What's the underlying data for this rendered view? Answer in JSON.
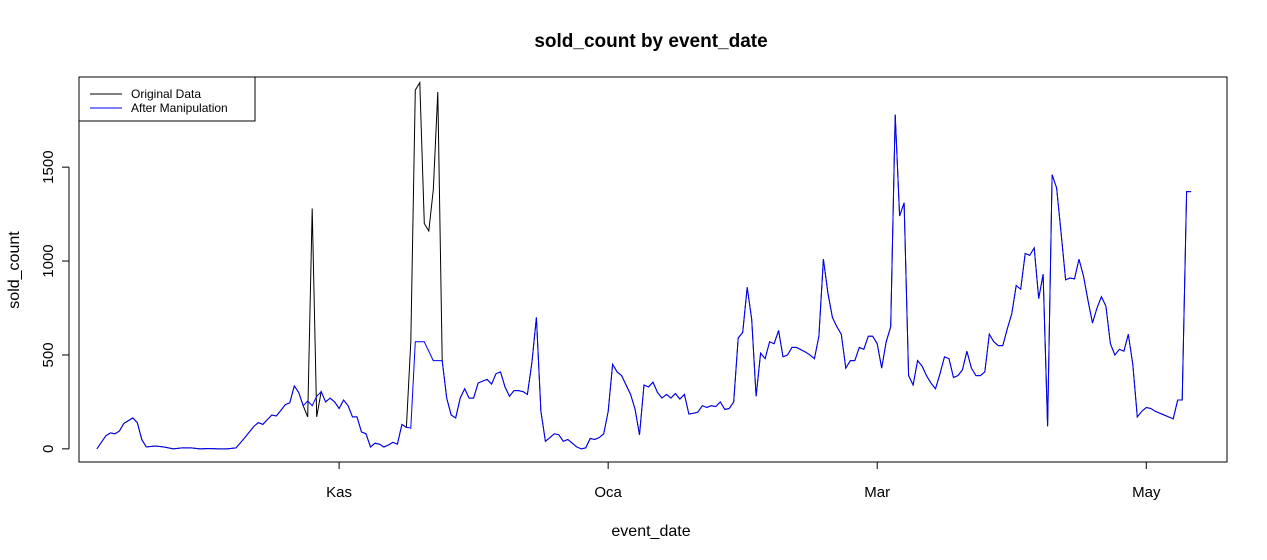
{
  "chart_data": {
    "type": "line",
    "title": "sold_count by event_date",
    "xlabel": "event_date",
    "ylabel": "sold_count",
    "x_ticks": [
      "Kas",
      "Oca",
      "Mar",
      "May"
    ],
    "y_ticks": [
      "0",
      "500",
      "1000",
      "1500"
    ],
    "legend": {
      "position": "top-left",
      "entries": [
        "Original Data",
        "After Manipulation"
      ]
    },
    "colors": {
      "original": "#000000",
      "manipulated": "#0000ff"
    },
    "grid": false,
    "series": [
      {
        "name": "Original Data",
        "color": "#000000",
        "spikes": [
          {
            "x": -7,
            "y": 170
          },
          {
            "x": -6,
            "y": 1280
          },
          {
            "x": -5,
            "y": 170
          },
          {
            "x": 16,
            "y": 570
          },
          {
            "x": 17,
            "y": 1910
          },
          {
            "x": 18,
            "y": 1950
          },
          {
            "x": 19,
            "y": 1200
          },
          {
            "x": 20,
            "y": 1160
          },
          {
            "x": 21,
            "y": 1380
          },
          {
            "x": 22,
            "y": 1900
          },
          {
            "x": 23,
            "y": 470
          }
        ]
      },
      {
        "name": "After Manipulation",
        "color": "#0000ff",
        "points": [
          [
            -54,
            0
          ],
          [
            -52,
            70
          ],
          [
            -51,
            85
          ],
          [
            -50,
            80
          ],
          [
            -49,
            95
          ],
          [
            -48,
            135
          ],
          [
            -46,
            165
          ],
          [
            -45,
            140
          ],
          [
            -44,
            50
          ],
          [
            -43,
            10
          ],
          [
            -41,
            15
          ],
          [
            -39,
            10
          ],
          [
            -37,
            0
          ],
          [
            -35,
            5
          ],
          [
            -33,
            5
          ],
          [
            -31,
            0
          ],
          [
            -29,
            2
          ],
          [
            -27,
            0
          ],
          [
            -25,
            0
          ],
          [
            -23,
            5
          ],
          [
            -21,
            60
          ],
          [
            -19,
            120
          ],
          [
            -18,
            140
          ],
          [
            -17,
            130
          ],
          [
            -16,
            155
          ],
          [
            -15,
            180
          ],
          [
            -14,
            175
          ],
          [
            -13,
            205
          ],
          [
            -12,
            235
          ],
          [
            -11,
            245
          ],
          [
            -10,
            335
          ],
          [
            -9,
            300
          ],
          [
            -8,
            230
          ],
          [
            -7,
            255
          ],
          [
            -6,
            230
          ],
          [
            -5,
            280
          ],
          [
            -4,
            305
          ],
          [
            -3,
            250
          ],
          [
            -2,
            270
          ],
          [
            -1,
            250
          ],
          [
            0,
            215
          ],
          [
            1,
            260
          ],
          [
            2,
            230
          ],
          [
            3,
            170
          ],
          [
            4,
            170
          ],
          [
            5,
            90
          ],
          [
            6,
            80
          ],
          [
            7,
            10
          ],
          [
            8,
            30
          ],
          [
            9,
            25
          ],
          [
            10,
            10
          ],
          [
            11,
            20
          ],
          [
            12,
            35
          ],
          [
            13,
            25
          ],
          [
            14,
            130
          ],
          [
            15,
            115
          ],
          [
            16,
            110
          ],
          [
            17,
            570
          ],
          [
            19,
            570
          ],
          [
            21,
            470
          ],
          [
            23,
            470
          ],
          [
            24,
            270
          ],
          [
            25,
            180
          ],
          [
            26,
            165
          ],
          [
            27,
            270
          ],
          [
            28,
            320
          ],
          [
            29,
            270
          ],
          [
            30,
            270
          ],
          [
            31,
            350
          ],
          [
            32,
            360
          ],
          [
            33,
            370
          ],
          [
            34,
            345
          ],
          [
            35,
            400
          ],
          [
            36,
            410
          ],
          [
            37,
            330
          ],
          [
            38,
            280
          ],
          [
            39,
            310
          ],
          [
            40,
            310
          ],
          [
            41,
            305
          ],
          [
            42,
            290
          ],
          [
            43,
            460
          ],
          [
            44,
            700
          ],
          [
            45,
            200
          ],
          [
            46,
            40
          ],
          [
            47,
            60
          ],
          [
            48,
            80
          ],
          [
            49,
            75
          ],
          [
            50,
            40
          ],
          [
            51,
            50
          ],
          [
            52,
            30
          ],
          [
            53,
            10
          ],
          [
            54,
            0
          ],
          [
            55,
            5
          ],
          [
            56,
            55
          ],
          [
            57,
            50
          ],
          [
            58,
            60
          ],
          [
            59,
            80
          ],
          [
            60,
            200
          ],
          [
            61,
            450
          ],
          [
            62,
            410
          ],
          [
            63,
            390
          ],
          [
            64,
            340
          ],
          [
            65,
            290
          ],
          [
            66,
            210
          ],
          [
            67,
            75
          ],
          [
            68,
            340
          ],
          [
            69,
            330
          ],
          [
            70,
            355
          ],
          [
            71,
            300
          ],
          [
            72,
            270
          ],
          [
            73,
            290
          ],
          [
            74,
            270
          ],
          [
            75,
            295
          ],
          [
            76,
            265
          ],
          [
            77,
            290
          ],
          [
            78,
            185
          ],
          [
            79,
            190
          ],
          [
            80,
            195
          ],
          [
            81,
            230
          ],
          [
            82,
            220
          ],
          [
            83,
            230
          ],
          [
            84,
            225
          ],
          [
            85,
            250
          ],
          [
            86,
            210
          ],
          [
            87,
            215
          ],
          [
            88,
            250
          ],
          [
            89,
            590
          ],
          [
            90,
            620
          ],
          [
            91,
            860
          ],
          [
            92,
            690
          ],
          [
            93,
            280
          ],
          [
            94,
            510
          ],
          [
            95,
            480
          ],
          [
            96,
            570
          ],
          [
            97,
            560
          ],
          [
            98,
            630
          ],
          [
            99,
            490
          ],
          [
            100,
            500
          ],
          [
            101,
            540
          ],
          [
            102,
            540
          ],
          [
            104,
            515
          ],
          [
            105,
            500
          ],
          [
            106,
            480
          ],
          [
            107,
            600
          ],
          [
            108,
            1010
          ],
          [
            109,
            830
          ],
          [
            110,
            700
          ],
          [
            111,
            650
          ],
          [
            112,
            610
          ],
          [
            113,
            430
          ],
          [
            114,
            470
          ],
          [
            115,
            470
          ],
          [
            116,
            540
          ],
          [
            117,
            530
          ],
          [
            118,
            600
          ],
          [
            119,
            600
          ],
          [
            120,
            560
          ],
          [
            121,
            430
          ],
          [
            122,
            570
          ],
          [
            123,
            650
          ],
          [
            124,
            1780
          ],
          [
            125,
            1240
          ],
          [
            126,
            1310
          ],
          [
            127,
            390
          ],
          [
            128,
            340
          ],
          [
            129,
            470
          ],
          [
            130,
            440
          ],
          [
            131,
            390
          ],
          [
            132,
            350
          ],
          [
            133,
            320
          ],
          [
            134,
            400
          ],
          [
            135,
            490
          ],
          [
            136,
            480
          ],
          [
            137,
            380
          ],
          [
            138,
            390
          ],
          [
            139,
            420
          ],
          [
            140,
            520
          ],
          [
            141,
            430
          ],
          [
            142,
            390
          ],
          [
            143,
            390
          ],
          [
            144,
            410
          ],
          [
            145,
            610
          ],
          [
            146,
            570
          ],
          [
            147,
            550
          ],
          [
            148,
            550
          ],
          [
            149,
            640
          ],
          [
            150,
            720
          ],
          [
            151,
            870
          ],
          [
            152,
            850
          ],
          [
            153,
            1040
          ],
          [
            154,
            1030
          ],
          [
            155,
            1070
          ],
          [
            156,
            800
          ],
          [
            157,
            930
          ],
          [
            158,
            120
          ],
          [
            159,
            1460
          ],
          [
            160,
            1390
          ],
          [
            161,
            1150
          ],
          [
            162,
            900
          ],
          [
            163,
            910
          ],
          [
            164,
            905
          ],
          [
            165,
            1010
          ],
          [
            166,
            920
          ],
          [
            167,
            790
          ],
          [
            168,
            670
          ],
          [
            169,
            750
          ],
          [
            170,
            810
          ],
          [
            171,
            760
          ],
          [
            172,
            560
          ],
          [
            173,
            500
          ],
          [
            174,
            530
          ],
          [
            175,
            520
          ],
          [
            176,
            610
          ],
          [
            177,
            450
          ],
          [
            178,
            170
          ],
          [
            179,
            200
          ],
          [
            180,
            220
          ],
          [
            181,
            215
          ],
          [
            182,
            200
          ],
          [
            184,
            180
          ],
          [
            185,
            170
          ],
          [
            186,
            160
          ],
          [
            187,
            260
          ],
          [
            188,
            260
          ],
          [
            189,
            1370
          ],
          [
            190,
            1370
          ]
        ]
      }
    ],
    "x_tick_positions": [
      0,
      60,
      120,
      180
    ],
    "xlim": [
      -58,
      198
    ],
    "ylim": [
      -70,
      1980
    ]
  }
}
